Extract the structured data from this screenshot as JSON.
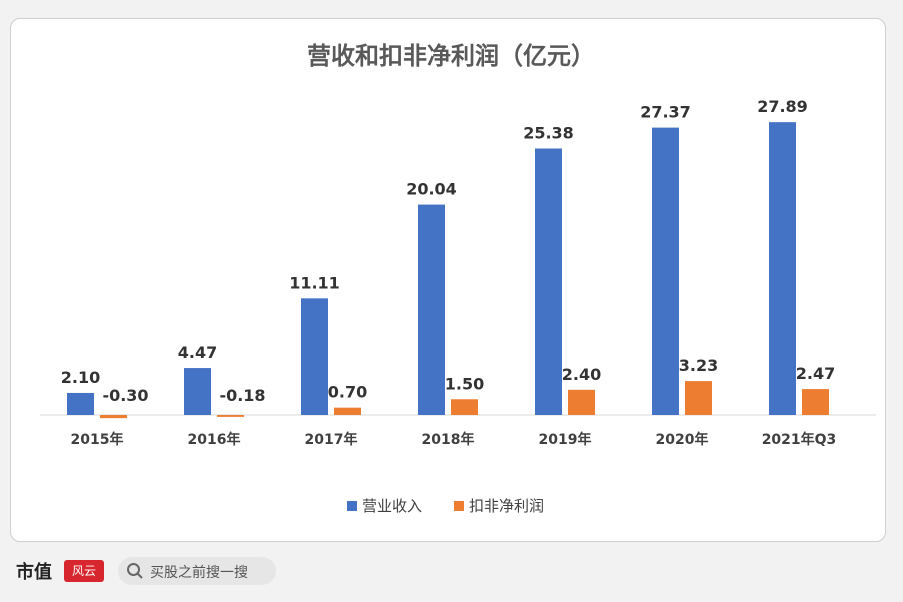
{
  "footer": {
    "brand": "市值",
    "brand_seal": "风云",
    "search_placeholder": "买股之前搜一搜"
  },
  "colors": {
    "revenue": "#4472c4",
    "profit": "#ed7d31",
    "background": "#ffffff"
  },
  "chart_data": {
    "type": "bar",
    "title": "营收和扣非净利润（亿元）",
    "categories": [
      "2015年",
      "2016年",
      "2017年",
      "2018年",
      "2019年",
      "2020年",
      "2021年Q3"
    ],
    "series": [
      {
        "name": "营业收入",
        "values": [
          2.1,
          4.47,
          11.11,
          20.04,
          25.38,
          27.37,
          27.89
        ],
        "labels": [
          "2.10",
          "4.47",
          "11.11",
          "20.04",
          "25.38",
          "27.37",
          "27.89"
        ]
      },
      {
        "name": "扣非净利润",
        "values": [
          -0.3,
          -0.18,
          0.7,
          1.5,
          2.4,
          3.23,
          2.47
        ],
        "labels": [
          "-0.30",
          "-0.18",
          "0.70",
          "1.50",
          "2.40",
          "3.23",
          "2.47"
        ]
      }
    ],
    "xlabel": "",
    "ylabel": "",
    "ylim": [
      -0.5,
      28
    ],
    "grid": false,
    "legend_position": "bottom"
  }
}
